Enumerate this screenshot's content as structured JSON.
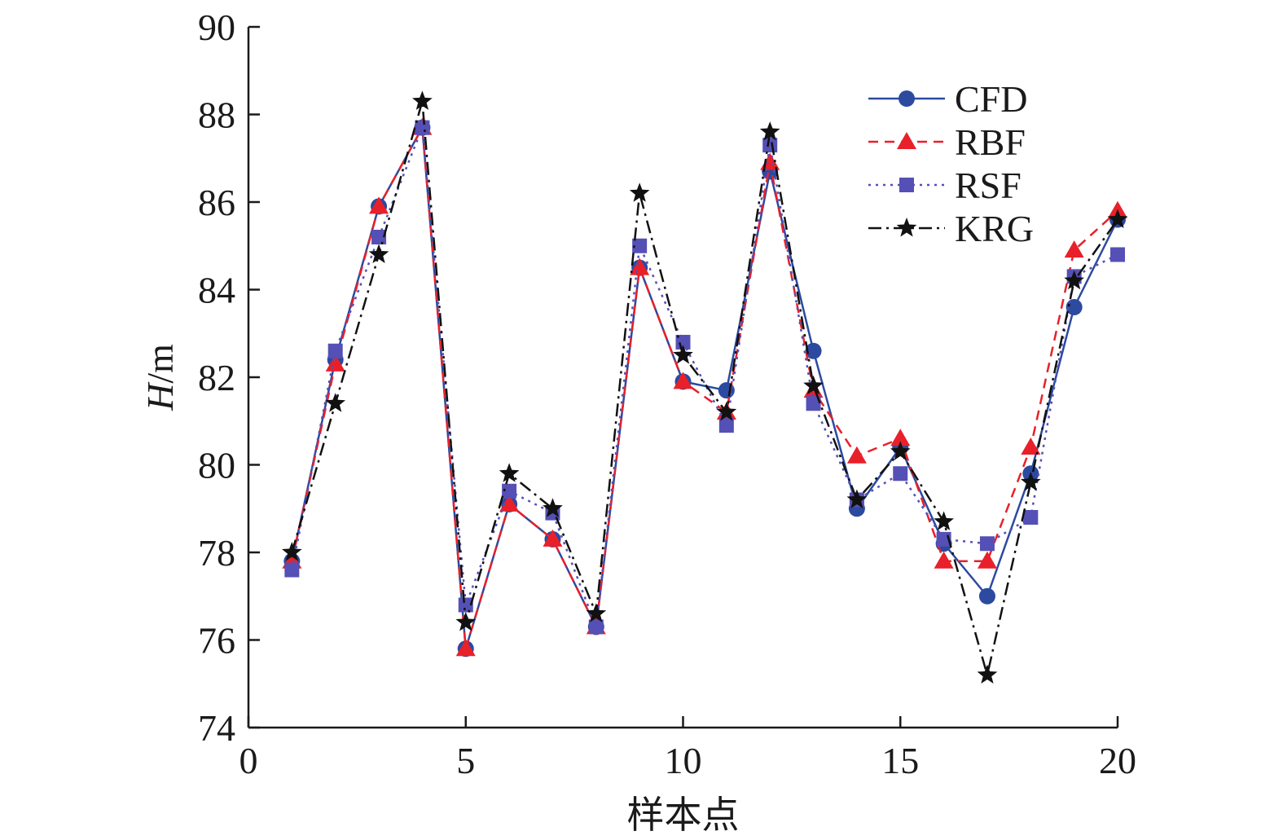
{
  "chart_data": {
    "type": "line",
    "title": "",
    "xlabel": "样本点",
    "ylabel_italic": "H",
    "ylabel_unit": "/m",
    "xlim": [
      0,
      20
    ],
    "ylim": [
      74,
      90
    ],
    "xticks": [
      0,
      5,
      10,
      15,
      20
    ],
    "yticks": [
      74,
      76,
      78,
      80,
      82,
      84,
      86,
      88,
      90
    ],
    "grid": false,
    "legend_position": "top-right",
    "x": [
      1,
      2,
      3,
      4,
      5,
      6,
      7,
      8,
      9,
      10,
      11,
      12,
      13,
      14,
      15,
      16,
      17,
      18,
      19,
      20
    ],
    "series": [
      {
        "name": "CFD",
        "color": "#2b4aa0",
        "dash": "solid",
        "marker": "circle",
        "values": [
          77.8,
          82.4,
          85.9,
          87.7,
          75.8,
          79.1,
          78.3,
          76.3,
          84.5,
          81.9,
          81.7,
          86.7,
          82.6,
          79.0,
          80.4,
          78.2,
          77.0,
          79.8,
          83.6,
          85.6
        ]
      },
      {
        "name": "RBF",
        "color": "#e8202a",
        "dash": "dashed",
        "marker": "triangle",
        "values": [
          77.8,
          82.3,
          85.9,
          87.7,
          75.8,
          79.1,
          78.3,
          76.3,
          84.5,
          81.9,
          81.2,
          86.9,
          81.7,
          80.2,
          80.6,
          77.8,
          77.8,
          80.4,
          84.9,
          85.8
        ]
      },
      {
        "name": "RSF",
        "color": "#5550b5",
        "dash": "dotted",
        "marker": "square",
        "values": [
          77.6,
          82.6,
          85.2,
          87.7,
          76.8,
          79.4,
          78.9,
          76.3,
          85.0,
          82.8,
          80.9,
          87.3,
          81.4,
          79.2,
          79.8,
          78.3,
          78.2,
          78.8,
          84.3,
          84.8
        ]
      },
      {
        "name": "KRG",
        "color": "#111111",
        "dash": "dashdot",
        "marker": "star",
        "values": [
          78.0,
          81.4,
          84.8,
          88.3,
          76.4,
          79.8,
          79.0,
          76.6,
          86.2,
          82.5,
          81.2,
          87.6,
          81.8,
          79.2,
          80.3,
          78.7,
          75.2,
          79.6,
          84.2,
          85.6
        ]
      }
    ]
  }
}
